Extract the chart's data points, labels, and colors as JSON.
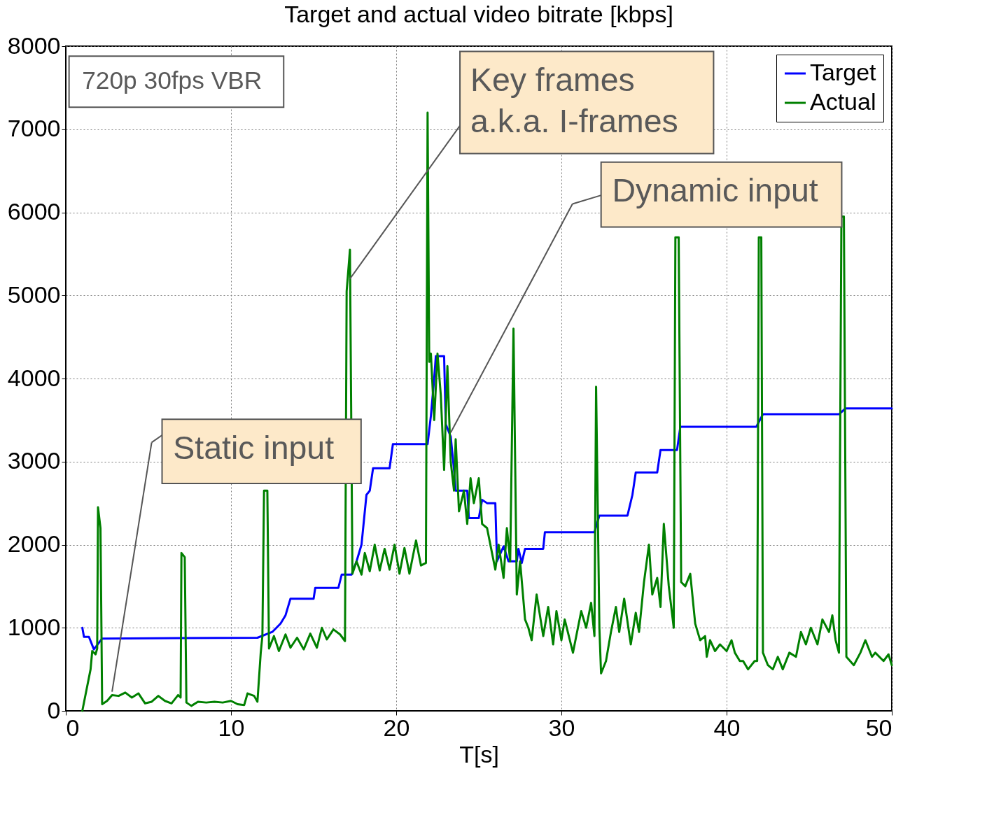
{
  "chart_data": {
    "type": "line",
    "title": "Target and actual video bitrate [kbps]",
    "xlabel": "T[s]",
    "xlim": [
      0,
      50
    ],
    "xticks": [
      0,
      10,
      20,
      30,
      40,
      50
    ],
    "ylim": [
      0,
      8000
    ],
    "yticks": [
      0,
      1000,
      2000,
      3000,
      4000,
      5000,
      6000,
      7000,
      8000
    ],
    "grid": true,
    "legend": "top right",
    "marker": "none",
    "line_style": "solid",
    "series": [
      {
        "name": "Target",
        "color": "#0000ff",
        "x": [
          1.0,
          1.1,
          1.4,
          1.7,
          2.2,
          11.6,
          12.5,
          13.0,
          13.3,
          13.6,
          15.0,
          15.1,
          16.5,
          16.7,
          17.3,
          17.6,
          17.9,
          18.2,
          18.4,
          18.6,
          19.6,
          19.8,
          21.9,
          22.1,
          22.3,
          22.4,
          22.9,
          23.0,
          23.3,
          23.5,
          23.6,
          24.3,
          24.4,
          25.0,
          25.2,
          25.5,
          26.0,
          26.1,
          26.5,
          26.8,
          27.3,
          27.4,
          27.6,
          27.8,
          28.9,
          29.0,
          32.0,
          32.3,
          34.0,
          34.3,
          34.5,
          35.8,
          36.0,
          37.0,
          37.2,
          41.8,
          42.2,
          46.8,
          47.2,
          50.0
        ],
        "values": [
          1000,
          890,
          890,
          740,
          870,
          880,
          950,
          1050,
          1150,
          1350,
          1350,
          1480,
          1480,
          1640,
          1640,
          1800,
          2000,
          2600,
          2650,
          2920,
          2920,
          3210,
          3210,
          3550,
          4000,
          4270,
          4270,
          3450,
          3300,
          2900,
          2650,
          2650,
          2320,
          2320,
          2540,
          2500,
          2500,
          1800,
          1980,
          1800,
          1800,
          1950,
          1780,
          1950,
          1950,
          2150,
          2150,
          2350,
          2350,
          2600,
          2870,
          2870,
          3140,
          3140,
          3420,
          3420,
          3570,
          3570,
          3640,
          3640
        ]
      },
      {
        "name": "Actual",
        "color": "#008000",
        "x": [
          1.0,
          1.5,
          1.6,
          1.8,
          1.9,
          1.95,
          2.1,
          2.2,
          2.5,
          2.8,
          3.2,
          3.6,
          4.0,
          4.4,
          4.8,
          5.2,
          5.6,
          6.0,
          6.4,
          6.8,
          6.95,
          7.0,
          7.2,
          7.3,
          7.6,
          8.0,
          8.5,
          9.0,
          9.5,
          10.0,
          10.4,
          10.8,
          11.0,
          11.4,
          11.6,
          11.8,
          11.9,
          12.0,
          12.2,
          12.3,
          12.6,
          12.9,
          13.3,
          13.6,
          14.0,
          14.4,
          14.8,
          15.2,
          15.5,
          15.8,
          16.2,
          16.6,
          16.9,
          17.0,
          17.2,
          17.35,
          17.6,
          17.9,
          18.1,
          18.4,
          18.7,
          19.0,
          19.3,
          19.6,
          19.9,
          20.2,
          20.5,
          20.8,
          21.2,
          21.5,
          21.8,
          21.9,
          22.0,
          22.1,
          22.3,
          22.5,
          22.7,
          22.9,
          23.1,
          23.3,
          23.5,
          23.6,
          23.8,
          24.1,
          24.3,
          24.5,
          24.7,
          25.0,
          25.2,
          25.5,
          25.8,
          26.0,
          26.2,
          26.5,
          26.7,
          26.9,
          27.1,
          27.3,
          27.5,
          27.8,
          28.0,
          28.2,
          28.5,
          28.9,
          29.2,
          29.5,
          29.7,
          30.0,
          30.2,
          30.7,
          31.2,
          31.5,
          31.8,
          32.0,
          32.1,
          32.3,
          32.4,
          32.7,
          33.0,
          33.3,
          33.5,
          33.8,
          34.2,
          34.5,
          34.7,
          35.0,
          35.3,
          35.5,
          35.8,
          36.0,
          36.2,
          36.5,
          36.8,
          36.9,
          37.1,
          37.25,
          37.5,
          37.8,
          38.1,
          38.4,
          38.7,
          38.8,
          39.0,
          39.3,
          39.6,
          40.0,
          40.3,
          40.5,
          40.8,
          41.0,
          41.3,
          41.7,
          41.85,
          41.95,
          42.1,
          42.2,
          42.5,
          42.8,
          43.1,
          43.4,
          43.8,
          44.2,
          44.5,
          44.8,
          45.1,
          45.5,
          45.8,
          46.2,
          46.4,
          46.6,
          46.8,
          46.95,
          47.1,
          47.25,
          47.7,
          48.1,
          48.4,
          48.8,
          49.0,
          49.5,
          49.8,
          50.0
        ],
        "values": [
          0,
          500,
          720,
          680,
          750,
          2450,
          2200,
          80,
          120,
          190,
          180,
          220,
          160,
          210,
          90,
          110,
          180,
          120,
          90,
          190,
          160,
          1900,
          1850,
          100,
          60,
          110,
          100,
          110,
          100,
          120,
          80,
          70,
          210,
          180,
          110,
          700,
          900,
          2650,
          2650,
          750,
          900,
          720,
          920,
          760,
          880,
          740,
          930,
          760,
          1000,
          860,
          980,
          920,
          840,
          5050,
          5550,
          1650,
          1800,
          1640,
          1900,
          1680,
          2000,
          1690,
          1950,
          1700,
          2000,
          1650,
          1960,
          1650,
          2050,
          1750,
          1780,
          7200,
          4200,
          4300,
          3500,
          4300,
          3800,
          2900,
          4150,
          3000,
          2650,
          3270,
          2400,
          2650,
          2250,
          2800,
          2500,
          2800,
          2250,
          2200,
          1900,
          1700,
          2000,
          1600,
          2200,
          1800,
          4600,
          1400,
          1800,
          1100,
          1000,
          850,
          1400,
          900,
          1250,
          800,
          1200,
          850,
          1100,
          700,
          1200,
          1000,
          1300,
          900,
          3900,
          1000,
          450,
          600,
          950,
          1250,
          950,
          1350,
          800,
          1180,
          950,
          1550,
          2000,
          1400,
          1600,
          1250,
          2250,
          1500,
          1000,
          5700,
          5700,
          1550,
          1500,
          1650,
          1050,
          850,
          900,
          650,
          850,
          720,
          800,
          720,
          850,
          700,
          600,
          600,
          500,
          600,
          600,
          5700,
          5700,
          700,
          550,
          500,
          650,
          500,
          700,
          650,
          950,
          800,
          1000,
          800,
          1100,
          950,
          1150,
          850,
          700,
          5950,
          5950,
          650,
          550,
          700,
          850,
          650,
          700,
          600,
          680,
          550
        ]
      }
    ],
    "annotations": [
      "720p 30fps VBR",
      {
        "text": "Key frames\na.k.a. I-frames",
        "x": 17.2,
        "y": 5200
      },
      {
        "text": "Dynamic input",
        "x": 23.3,
        "y": 3350
      },
      {
        "text": "Static input",
        "x": 2.8,
        "y": 230
      }
    ]
  }
}
